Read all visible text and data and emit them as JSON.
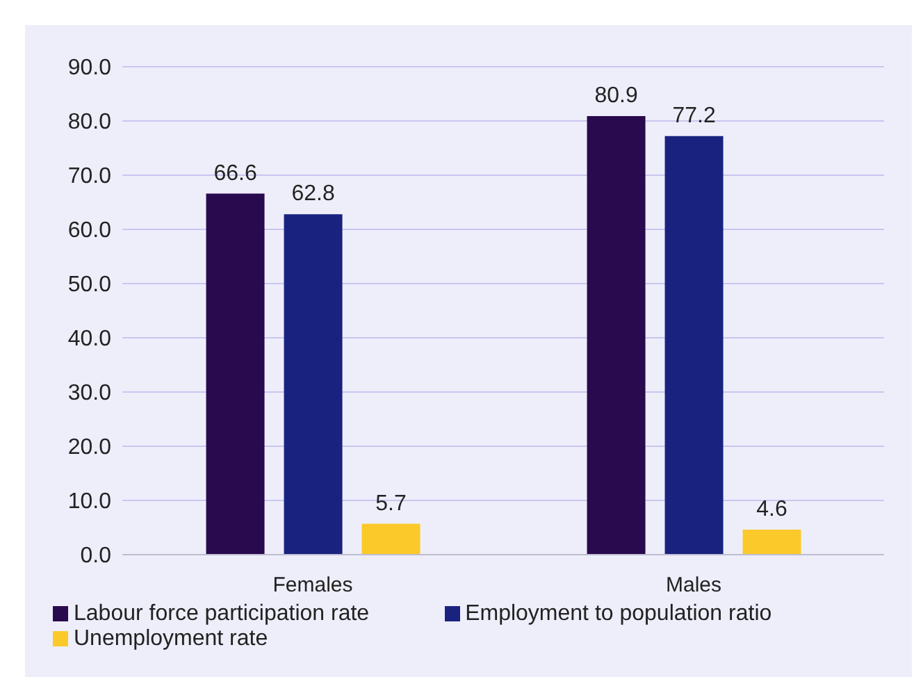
{
  "chart_data": {
    "type": "bar",
    "categories": [
      "Females",
      "Males"
    ],
    "series": [
      {
        "name": "Labour force participation rate",
        "color": "#2a0a4e",
        "values": [
          66.6,
          80.9
        ]
      },
      {
        "name": "Employment to population ratio",
        "color": "#1a2280",
        "values": [
          62.8,
          77.2
        ]
      },
      {
        "name": "Unemployment rate",
        "color": "#fcc92a",
        "values": [
          5.7,
          4.6
        ]
      }
    ],
    "ylim": [
      0,
      90
    ],
    "yticks": [
      {
        "value": 0,
        "label": "0.0"
      },
      {
        "value": 10,
        "label": "10.0"
      },
      {
        "value": 20,
        "label": "20.0"
      },
      {
        "value": 30,
        "label": "30.0"
      },
      {
        "value": 40,
        "label": "40.0"
      },
      {
        "value": 50,
        "label": "50.0"
      },
      {
        "value": 60,
        "label": "60.0"
      },
      {
        "value": 70,
        "label": "70.0"
      },
      {
        "value": 80,
        "label": "80.0"
      },
      {
        "value": 90,
        "label": "90.0"
      }
    ],
    "grid": "y",
    "legend": "bottom left",
    "data_labels": true
  }
}
